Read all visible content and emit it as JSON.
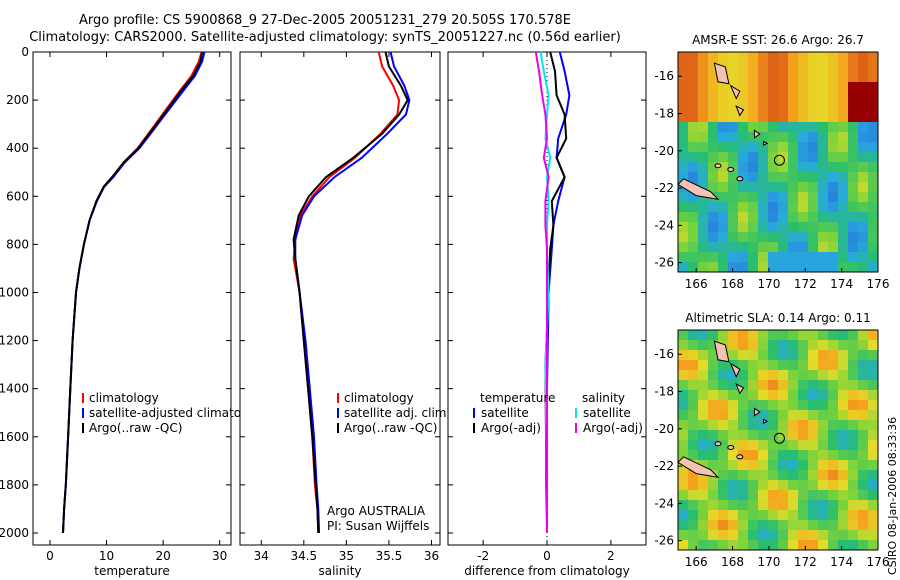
{
  "header": {
    "line1": "Argo profile: CS 5900868_9 27-Dec-2005 20051231_279 20.505S 170.578E",
    "line2": "Climatology: CARS2000. Satellite-adjusted climatology: synTS_20051227.nc (0.56d earlier)"
  },
  "stamp": "CSIRO 08-Jan-2006 08:33:36",
  "colors": {
    "climatology": "#ff0000",
    "satellite": "#0000ff",
    "argo": "#000000",
    "satellite_diff": "#00e5ee",
    "argo_diff": "#ee00ee"
  },
  "chart_data": [
    {
      "type": "line",
      "xlabel": "temperature",
      "ylabel": "",
      "xlim": [
        -3,
        32
      ],
      "ylim": [
        2050,
        0
      ],
      "y_reversed": true,
      "xticks": [
        0,
        10,
        20,
        30
      ],
      "yticks": [
        0,
        200,
        400,
        600,
        800,
        1000,
        1200,
        1400,
        1600,
        1800,
        2000
      ],
      "legend": [
        "climatology",
        "satellite-adjusted climatology",
        "Argo(..raw -QC)"
      ],
      "series": [
        {
          "name": "climatology",
          "color": "#ff0000",
          "x": [
            26.8,
            26.3,
            25.0,
            23.0,
            20.5,
            18.0,
            15.5,
            13.0,
            11.0,
            9.5,
            8.2,
            7.0,
            6.0,
            5.2,
            4.6,
            4.0,
            3.6,
            3.2,
            2.8,
            2.5,
            2.3
          ],
          "y": [
            0,
            40,
            100,
            160,
            240,
            320,
            400,
            460,
            520,
            560,
            620,
            700,
            800,
            900,
            1000,
            1200,
            1400,
            1600,
            1800,
            1900,
            2000
          ]
        },
        {
          "name": "satellite-adjusted climatology",
          "color": "#0000ff",
          "x": [
            27.3,
            26.9,
            25.6,
            23.6,
            21.0,
            18.4,
            15.8,
            13.2,
            11.2,
            9.6,
            8.3,
            7.0,
            6.0,
            5.2,
            4.6,
            4.0,
            3.6,
            3.2,
            2.8,
            2.5,
            2.3
          ],
          "y": [
            0,
            40,
            100,
            160,
            240,
            320,
            400,
            460,
            520,
            560,
            620,
            700,
            800,
            900,
            1000,
            1200,
            1400,
            1600,
            1800,
            1900,
            2000
          ]
        },
        {
          "name": "Argo(..raw -QC)",
          "color": "#000000",
          "x": [
            26.9,
            26.6,
            25.3,
            23.2,
            20.7,
            18.2,
            15.6,
            13.0,
            11.0,
            9.5,
            8.2,
            7.0,
            6.0,
            5.2,
            4.6,
            4.0,
            3.6,
            3.2,
            2.8,
            2.5,
            2.3
          ],
          "y": [
            0,
            40,
            100,
            160,
            240,
            320,
            400,
            460,
            520,
            560,
            620,
            700,
            800,
            900,
            1000,
            1200,
            1400,
            1600,
            1800,
            1900,
            2000
          ]
        }
      ]
    },
    {
      "type": "line",
      "xlabel": "salinity",
      "xlim": [
        33.75,
        36.1
      ],
      "ylim": [
        2050,
        0
      ],
      "y_reversed": true,
      "xticks": [
        34,
        34.5,
        35,
        35.5,
        36
      ],
      "xtick_labels": [
        "34",
        "34.5",
        "35",
        "35.5",
        "36"
      ],
      "legend": [
        "climatology",
        "satellite adj. clim.",
        "Argo(..raw -QC)"
      ],
      "annotation": [
        "Argo AUSTRALIA",
        "PI: Susan Wijffels"
      ],
      "series": [
        {
          "name": "climatology",
          "color": "#ff0000",
          "x": [
            35.38,
            35.42,
            35.55,
            35.62,
            35.6,
            35.4,
            35.1,
            34.8,
            34.6,
            34.46,
            34.4,
            34.38,
            34.45,
            34.5,
            34.55,
            34.6,
            34.63,
            34.66,
            34.67
          ],
          "y": [
            0,
            60,
            140,
            200,
            260,
            340,
            440,
            520,
            600,
            680,
            780,
            860,
            1000,
            1200,
            1400,
            1600,
            1800,
            1900,
            2000
          ]
        },
        {
          "name": "satellite adj. clim.",
          "color": "#0000ff",
          "x": [
            35.52,
            35.56,
            35.68,
            35.74,
            35.7,
            35.48,
            35.18,
            34.86,
            34.62,
            34.48,
            34.4,
            34.4,
            34.45,
            34.52,
            34.57,
            34.62,
            34.65,
            34.67,
            34.68
          ],
          "y": [
            0,
            60,
            140,
            200,
            260,
            340,
            440,
            520,
            600,
            680,
            780,
            860,
            1000,
            1200,
            1400,
            1600,
            1800,
            1900,
            2000
          ]
        },
        {
          "name": "Argo(..raw -QC)",
          "color": "#000000",
          "x": [
            35.46,
            35.5,
            35.64,
            35.72,
            35.62,
            35.42,
            35.08,
            34.76,
            34.56,
            34.44,
            34.38,
            34.4,
            34.45,
            34.5,
            34.55,
            34.6,
            34.64,
            34.66,
            34.67
          ],
          "y": [
            0,
            60,
            140,
            200,
            260,
            340,
            440,
            520,
            600,
            680,
            780,
            860,
            1000,
            1200,
            1400,
            1600,
            1800,
            1900,
            2000
          ]
        }
      ]
    },
    {
      "type": "line",
      "xlabel": "difference from climatology",
      "xlim": [
        -3.1,
        3.1
      ],
      "ylim": [
        2050,
        0
      ],
      "y_reversed": true,
      "xticks": [
        -2,
        0,
        2
      ],
      "legend": [
        "temperature",
        "satellite",
        "Argo(-adj)",
        "salinity",
        "satellite",
        "Argo(-adj)"
      ],
      "series": [
        {
          "name": "temperature satellite",
          "color": "#0000ff",
          "x": [
            0.4,
            0.55,
            0.7,
            0.6,
            0.35,
            0.3,
            0.55,
            0.35,
            0.2,
            0.15,
            0.05,
            0.0,
            0.0,
            0.0
          ],
          "y": [
            0,
            80,
            180,
            260,
            360,
            440,
            520,
            620,
            720,
            820,
            1000,
            1400,
            1800,
            2000
          ]
        },
        {
          "name": "temperature Argo(-adj)",
          "color": "#000000",
          "x": [
            0.1,
            0.25,
            0.3,
            0.55,
            0.6,
            0.3,
            0.55,
            0.15,
            0.2,
            0.1,
            0.05,
            -0.05,
            -0.02,
            0.0
          ],
          "y": [
            0,
            80,
            180,
            260,
            360,
            440,
            520,
            620,
            720,
            820,
            1000,
            1300,
            1800,
            2000
          ]
        },
        {
          "name": "salinity satellite",
          "color": "#00e5ee",
          "x": [
            -0.2,
            -0.1,
            0.05,
            0.0,
            -0.05,
            0.1,
            0.0,
            0.05,
            0.0,
            0.0,
            0.05,
            -0.05,
            0.0,
            0.0
          ],
          "y": [
            0,
            80,
            180,
            260,
            360,
            440,
            520,
            620,
            720,
            820,
            1000,
            1300,
            1800,
            2000
          ]
        },
        {
          "name": "salinity Argo(-adj)",
          "color": "#ee00ee",
          "x": [
            -0.35,
            -0.25,
            -0.15,
            -0.05,
            0.0,
            -0.1,
            0.05,
            -0.05,
            -0.05,
            0.0,
            0.0,
            0.0,
            0.0,
            0.0
          ],
          "y": [
            0,
            80,
            180,
            260,
            360,
            440,
            520,
            620,
            720,
            820,
            1000,
            1300,
            1800,
            2000
          ]
        }
      ]
    },
    {
      "type": "heatmap",
      "title": "AMSR-E SST: 26.6 Argo: 26.7",
      "xlim": [
        165,
        176
      ],
      "ylim": [
        -26.5,
        -14.7
      ],
      "xticks": [
        166,
        168,
        170,
        172,
        174,
        176
      ],
      "yticks": [
        -26,
        -24,
        -22,
        -20,
        -18,
        -16
      ],
      "marker": {
        "lon": 170.578,
        "lat": -20.505
      }
    },
    {
      "type": "heatmap",
      "title": "Altimetric SLA: 0.14 Argo: 0.11",
      "xlim": [
        165,
        176
      ],
      "ylim": [
        -26.5,
        -14.7
      ],
      "xticks": [
        166,
        168,
        170,
        172,
        174,
        176
      ],
      "yticks": [
        -26,
        -24,
        -22,
        -20,
        -18,
        -16
      ],
      "marker": {
        "lon": 170.578,
        "lat": -20.505
      }
    }
  ]
}
